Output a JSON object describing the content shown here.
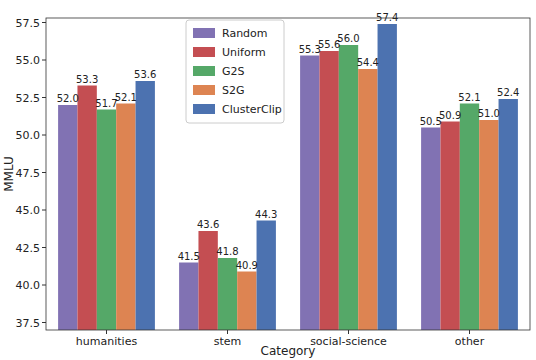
{
  "chart_data": {
    "type": "bar",
    "x_label": "Category",
    "y_label": "MMLU",
    "categories": [
      "humanities",
      "stem",
      "social-science",
      "other"
    ],
    "series": [
      {
        "name": "Random",
        "color": "#8172b3",
        "values": [
          52.0,
          41.5,
          55.3,
          50.5
        ],
        "value_labels": [
          "52.0",
          "41.5",
          "55.3",
          "50.5"
        ]
      },
      {
        "name": "Uniform",
        "color": "#c44e52",
        "values": [
          53.3,
          43.6,
          55.6,
          50.9
        ],
        "value_labels": [
          "53.3",
          "43.6",
          "55.6",
          "50.9"
        ]
      },
      {
        "name": "G2S",
        "color": "#55a868",
        "values": [
          51.7,
          41.8,
          56.0,
          52.1
        ],
        "value_labels": [
          "51.7",
          "41.8",
          "56.0",
          "52.1"
        ]
      },
      {
        "name": "S2G",
        "color": "#dd8452",
        "values": [
          52.1,
          40.9,
          54.4,
          51.0
        ],
        "value_labels": [
          "52.1",
          "40.9",
          "54.4",
          "51.0"
        ]
      },
      {
        "name": "ClusterClip",
        "color": "#4c72b0",
        "values": [
          53.6,
          44.3,
          57.4,
          52.4
        ],
        "value_labels": [
          "53.6",
          "44.3",
          "57.4",
          "52.4"
        ]
      }
    ],
    "ylim": [
      37,
      57.8
    ],
    "yticks": [
      37.5,
      {
        "value": 40,
        "label": "40.0"
      },
      42.5,
      {
        "value": 45,
        "label": "45.0"
      },
      47.5,
      {
        "value": 50,
        "label": "50.0"
      },
      52.5,
      {
        "value": 55,
        "label": "55.0"
      },
      57.5
    ],
    "grid": false,
    "legend": "top",
    "data_labels": true
  }
}
